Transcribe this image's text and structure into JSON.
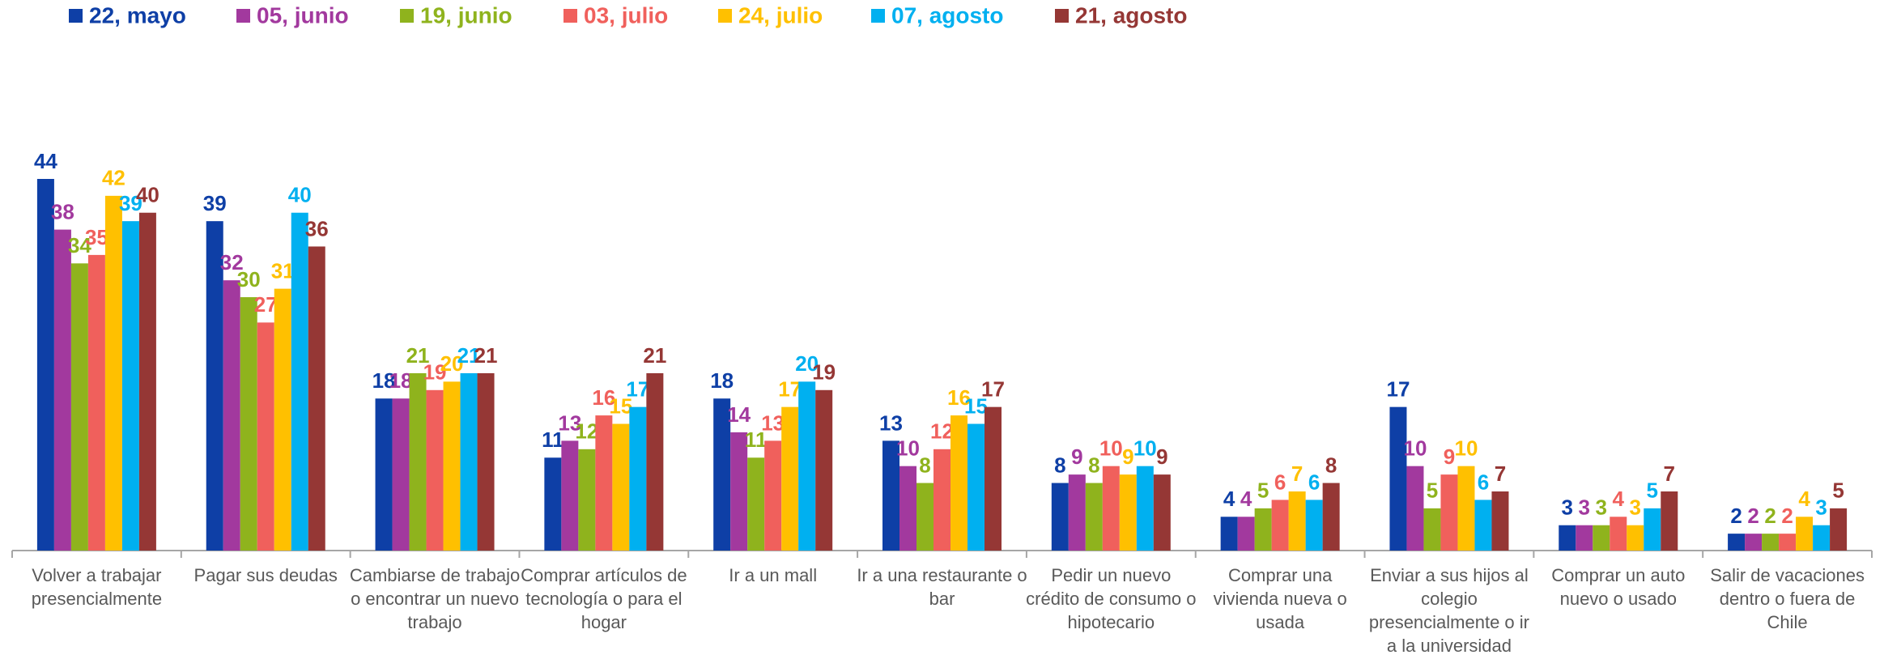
{
  "chart_data": {
    "type": "bar",
    "categories": [
      "Volver a trabajar presencialmente",
      "Pagar sus deudas",
      "Cambiarse de trabajo o encontrar un nuevo trabajo",
      "Comprar artículos de tecnología o para el hogar",
      "Ir a un mall",
      "Ir a una restaurante o bar",
      "Pedir un nuevo crédito de consumo o hipotecario",
      "Comprar una vivienda nueva o usada",
      "Enviar a sus hijos al colegio presencialmente o ir a la universidad",
      "Comprar un auto nuevo o usado",
      "Salir de vacaciones dentro o fuera de Chile"
    ],
    "series": [
      {
        "name": "22, mayo",
        "color": "#0e3fa6",
        "values": [
          44,
          39,
          18,
          11,
          18,
          13,
          8,
          4,
          17,
          3,
          2
        ]
      },
      {
        "name": "05, junio",
        "color": "#a2399e",
        "values": [
          38,
          32,
          18,
          13,
          14,
          10,
          9,
          4,
          10,
          3,
          2
        ]
      },
      {
        "name": "19, junio",
        "color": "#8fb31d",
        "values": [
          34,
          30,
          21,
          12,
          11,
          8,
          8,
          5,
          5,
          3,
          2
        ]
      },
      {
        "name": "03, julio",
        "color": "#f0605c",
        "values": [
          35,
          27,
          19,
          16,
          13,
          12,
          10,
          6,
          9,
          4,
          2
        ]
      },
      {
        "name": "24, julio",
        "color": "#ffc000",
        "values": [
          42,
          31,
          20,
          15,
          17,
          16,
          9,
          7,
          10,
          3,
          4
        ]
      },
      {
        "name": "07, agosto",
        "color": "#00b0f0",
        "values": [
          39,
          40,
          21,
          17,
          20,
          15,
          10,
          6,
          6,
          5,
          3
        ]
      },
      {
        "name": "21, agosto",
        "color": "#953735",
        "values": [
          40,
          36,
          21,
          21,
          19,
          17,
          9,
          8,
          7,
          7,
          5
        ]
      }
    ],
    "legend": "top"
  }
}
